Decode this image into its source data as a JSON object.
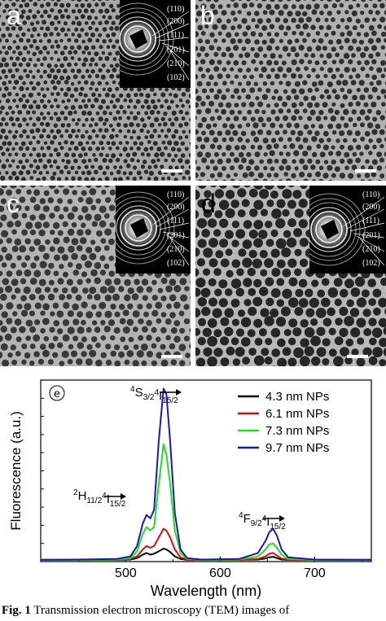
{
  "panels": {
    "a": {
      "letter": "a",
      "letter_color": "#ffffff"
    },
    "b": {
      "letter": "b",
      "letter_color": "#ffffff"
    },
    "c": {
      "letter": "c",
      "letter_color": "#ffffff"
    },
    "d": {
      "letter": "d",
      "letter_color": "#000000"
    }
  },
  "saed_ring_labels": [
    "(110)",
    "(200)",
    "(111)",
    "(201)",
    "(210)",
    "(102)"
  ],
  "chart_data": {
    "type": "line",
    "panel_label": "e",
    "xlabel": "Wavelength (nm)",
    "ylabel": "Fluorescence (a.u.)",
    "xlim": [
      410,
      760
    ],
    "ylim": [
      0,
      1.05
    ],
    "xticks": [
      500,
      600,
      700
    ],
    "x": [
      410,
      450,
      490,
      505,
      512,
      518,
      522,
      526,
      530,
      535,
      540,
      543,
      547,
      552,
      558,
      565,
      580,
      620,
      640,
      648,
      652,
      656,
      660,
      665,
      672,
      700,
      760
    ],
    "series": [
      {
        "name": "4.3 nm NPs",
        "color": "#000000",
        "values": [
          0.01,
          0.01,
          0.01,
          0.012,
          0.02,
          0.04,
          0.05,
          0.04,
          0.045,
          0.06,
          0.075,
          0.07,
          0.055,
          0.03,
          0.015,
          0.01,
          0.01,
          0.01,
          0.012,
          0.018,
          0.025,
          0.028,
          0.02,
          0.012,
          0.01,
          0.01,
          0.01
        ]
      },
      {
        "name": "6.1 nm NPs",
        "color": "#d01010",
        "values": [
          0.01,
          0.01,
          0.012,
          0.015,
          0.03,
          0.07,
          0.09,
          0.08,
          0.09,
          0.14,
          0.19,
          0.18,
          0.14,
          0.07,
          0.025,
          0.012,
          0.01,
          0.01,
          0.015,
          0.03,
          0.045,
          0.05,
          0.035,
          0.018,
          0.012,
          0.01,
          0.01
        ]
      },
      {
        "name": "7.3 nm NPs",
        "color": "#22dd22",
        "values": [
          0.01,
          0.01,
          0.012,
          0.02,
          0.06,
          0.16,
          0.2,
          0.18,
          0.2,
          0.45,
          0.68,
          0.62,
          0.45,
          0.18,
          0.05,
          0.015,
          0.01,
          0.012,
          0.03,
          0.07,
          0.1,
          0.105,
          0.08,
          0.04,
          0.015,
          0.01,
          0.01
        ]
      },
      {
        "name": "9.7 nm NPs",
        "color": "#1a1aa8",
        "values": [
          0.01,
          0.012,
          0.015,
          0.03,
          0.09,
          0.22,
          0.27,
          0.25,
          0.3,
          0.7,
          1.0,
          0.97,
          0.7,
          0.28,
          0.07,
          0.02,
          0.012,
          0.015,
          0.05,
          0.12,
          0.17,
          0.19,
          0.15,
          0.07,
          0.025,
          0.012,
          0.01
        ]
      }
    ],
    "annotations": [
      {
        "lhs_sup": "4",
        "lhs_main": "S",
        "lhs_sub": "3/2",
        "rhs_sup": "4",
        "rhs_main": "I",
        "rhs_sub": "15/2",
        "x": 543,
        "y": 1.15
      },
      {
        "lhs_sup": "2",
        "lhs_main": "H",
        "lhs_sub": "11/2",
        "rhs_sup": "4",
        "rhs_main": "I",
        "rhs_sub": "15/2",
        "x": 500,
        "y": 0.45
      },
      {
        "lhs_sup": "4",
        "lhs_main": "F",
        "lhs_sub": "9/2",
        "rhs_sup": "4",
        "rhs_main": "I",
        "rhs_sub": "15/2",
        "x": 660,
        "y": 0.45
      }
    ],
    "legend_position": "top-right",
    "grid": false
  },
  "caption": {
    "fig_label": "Fig.   1",
    "text": " Transmission   electron   microscopy   (TEM)   images   of"
  }
}
